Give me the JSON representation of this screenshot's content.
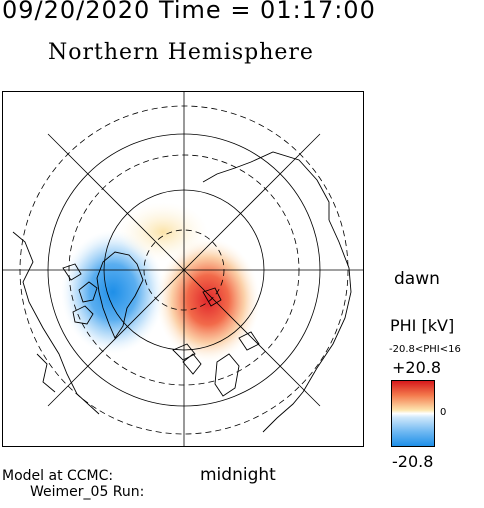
{
  "header": {
    "timestamp": "09/20/2020 Time = 01:17:00",
    "hemisphere_title": "Northern Hemisphere"
  },
  "map": {
    "orientation": {
      "dawn": "dawn",
      "midnight": "midnight"
    },
    "potential_extrema": {
      "min_region": "dusk-side (left)",
      "max_region": "dawn-side (right)"
    }
  },
  "colorbar": {
    "variable_label": "PHI [kV]",
    "range_label": "-20.8<PHI<16",
    "max_label": "+20.8",
    "zero_label": "0",
    "min_label": "-20.8",
    "colors": {
      "max": "#d7191c",
      "mid": "#ffffff",
      "min": "#1e8fe8"
    }
  },
  "footer": {
    "model_label": "Model at CCMC:",
    "run_label": "Weimer_05 Run:"
  }
}
